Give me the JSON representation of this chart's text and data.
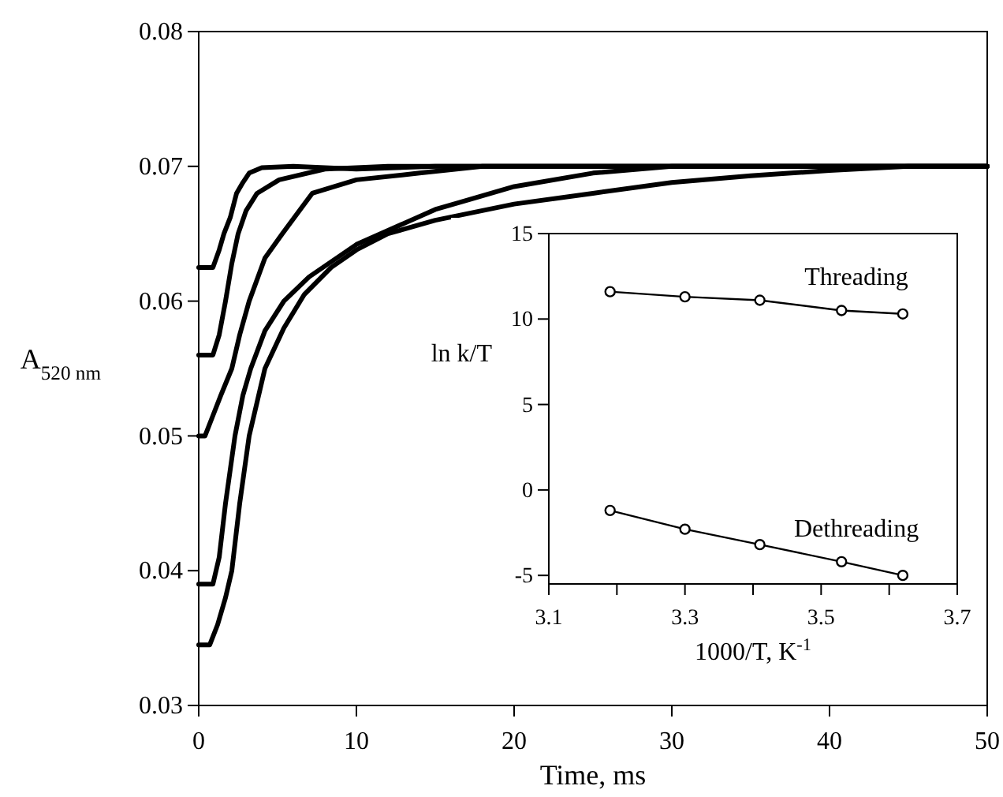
{
  "chart_data": [
    {
      "type": "line",
      "xlabel": "Time, ms",
      "ylabel": "A$_{520 nm}$",
      "xlim": [
        0,
        50
      ],
      "ylim": [
        0.03,
        0.08
      ],
      "xticks": [
        0,
        10,
        20,
        30,
        40,
        50
      ],
      "yticks": [
        {
          "value": 0.03,
          "label": "0.03"
        },
        {
          "value": 0.04,
          "label": "0.04"
        },
        {
          "value": 0.05,
          "label": "0.05"
        },
        {
          "value": 0.06,
          "label": "0.06"
        },
        {
          "value": 0.07,
          "label": "0.07"
        },
        {
          "value": 0.08,
          "label": "0.08"
        }
      ],
      "grid": false,
      "marker": "none",
      "line_style": "solid",
      "series": [
        {
          "color": "#000000",
          "x": [
            0,
            0.9,
            1.3,
            1.6,
            2.0,
            2.4,
            2.8,
            3.2,
            4,
            6,
            10,
            15,
            20,
            30,
            40,
            50
          ],
          "values": [
            0.0625,
            0.0625,
            0.0638,
            0.065,
            0.0662,
            0.068,
            0.0688,
            0.0695,
            0.0699,
            0.07,
            0.0698,
            0.07,
            0.07,
            0.07,
            0.07,
            0.07
          ]
        },
        {
          "color": "#000000",
          "x": [
            0,
            0.9,
            1.3,
            1.7,
            2.1,
            2.5,
            3.0,
            3.7,
            5.1,
            8,
            12,
            20,
            30,
            40,
            50
          ],
          "values": [
            0.056,
            0.056,
            0.0575,
            0.06,
            0.0628,
            0.065,
            0.0667,
            0.068,
            0.069,
            0.0698,
            0.07,
            0.07,
            0.07,
            0.07,
            0.07
          ]
        },
        {
          "color": "#000000",
          "x": [
            0,
            0.4,
            0.9,
            1.4,
            2.1,
            2.6,
            3.2,
            4.2,
            5.3,
            7.2,
            10,
            14,
            18,
            25,
            35,
            50
          ],
          "values": [
            0.05,
            0.05,
            0.0515,
            0.053,
            0.055,
            0.0575,
            0.06,
            0.0632,
            0.065,
            0.068,
            0.069,
            0.0695,
            0.07,
            0.07,
            0.07,
            0.07
          ]
        },
        {
          "color": "#000000",
          "x": [
            0,
            0.9,
            1.3,
            1.7,
            2.3,
            2.8,
            3.3,
            4.2,
            5.4,
            7,
            10,
            15,
            20,
            25,
            30,
            40,
            50
          ],
          "values": [
            0.039,
            0.039,
            0.041,
            0.045,
            0.05,
            0.053,
            0.055,
            0.0578,
            0.06,
            0.0618,
            0.0642,
            0.0668,
            0.0685,
            0.0695,
            0.07,
            0.07,
            0.07
          ]
        },
        {
          "color": "#000000",
          "x": [
            0,
            0.7,
            1.2,
            1.7,
            2.1,
            2.6,
            3.2,
            4.2,
            5.4,
            6.7,
            8.4,
            10,
            12,
            15,
            20,
            25,
            30,
            35,
            40,
            45,
            50
          ],
          "values": [
            0.0345,
            0.0345,
            0.036,
            0.038,
            0.04,
            0.045,
            0.05,
            0.055,
            0.058,
            0.0605,
            0.0625,
            0.0638,
            0.065,
            0.066,
            0.0672,
            0.068,
            0.0688,
            0.0693,
            0.0697,
            0.07,
            0.07
          ]
        }
      ]
    },
    {
      "type": "line",
      "xlabel": "1000/T, K$^{-1}$",
      "ylabel": "ln k/T",
      "xlim": [
        3.1,
        3.7
      ],
      "ylim": [
        -5.5,
        15
      ],
      "xticks": [
        3.1,
        {
          "value": 3.2,
          "label": null
        },
        3.3,
        {
          "value": 3.4,
          "label": null
        },
        3.5,
        {
          "value": 3.6,
          "label": null
        },
        3.7
      ],
      "yticks": [
        -5,
        0,
        5,
        10,
        15
      ],
      "grid": false,
      "marker": "circle",
      "line_style": "solid",
      "series": [
        {
          "name": "Threading",
          "color": "#000000",
          "x": [
            3.19,
            3.3,
            3.41,
            3.53,
            3.62
          ],
          "values": [
            11.6,
            11.3,
            11.1,
            10.5,
            10.3
          ]
        },
        {
          "name": "Dethreading",
          "color": "#000000",
          "x": [
            3.19,
            3.3,
            3.41,
            3.53,
            3.62
          ],
          "values": [
            -1.2,
            -2.3,
            -3.2,
            -4.2,
            -5.0
          ]
        }
      ]
    }
  ]
}
